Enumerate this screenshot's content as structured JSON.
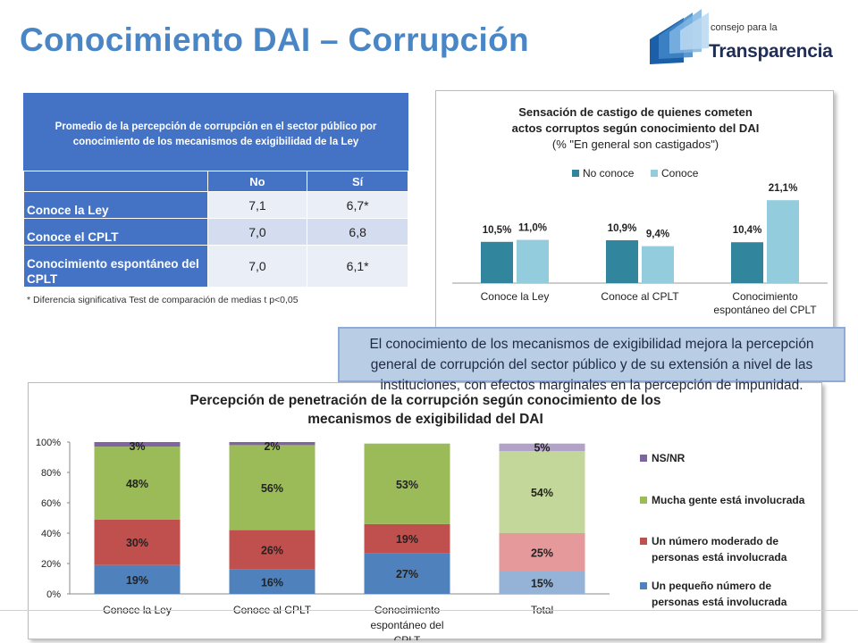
{
  "page": {
    "title": "Conocimiento DAI – Corrupción",
    "logo": {
      "line1": "consejo para la",
      "line2": "Transparencia"
    }
  },
  "table": {
    "title": "Promedio de la percepción de corrupción en el sector público por conocimiento de los mecanismos de exigibilidad de la Ley",
    "columns": [
      "",
      "No",
      "Sí"
    ],
    "rows": [
      {
        "label": "Conoce la Ley",
        "no": "7,1",
        "si": "6,7*"
      },
      {
        "label": "Conoce el CPLT",
        "no": "7,0",
        "si": "6,8"
      },
      {
        "label": "Conocimiento espontáneo del CPLT",
        "no": "7,0",
        "si": "6,1*"
      }
    ],
    "note": "* Diferencia significativa Test de comparación de medias t p<0,05"
  },
  "callout": "El conocimiento de los mecanismos de exigibilidad mejora la percepción general de  corrupción del sector público y de su extensión a nivel de las instituciones, con efectos marginales en la percepción de impunidad.",
  "chart_data": [
    {
      "type": "bar",
      "title": "Sensación de castigo de quienes cometen actos corruptos según conocimiento del DAI",
      "subtitle": "(% \"En general son castigados\")",
      "legend_position": "top",
      "categories": [
        "Conoce la Ley",
        "Conoce al CPLT",
        "Conocimiento espontáneo del CPLT"
      ],
      "series": [
        {
          "name": "No conoce",
          "color": "#31859c",
          "values": [
            10.5,
            10.9,
            10.4
          ],
          "labels": [
            "10,5%",
            "10,9%",
            "10,4%"
          ]
        },
        {
          "name": "Conoce",
          "color": "#93cddd",
          "values": [
            11.0,
            9.4,
            21.1
          ],
          "labels": [
            "11,0%",
            "9,4%",
            "21,1%"
          ]
        }
      ],
      "ylim": [
        0,
        25
      ],
      "grid": false
    },
    {
      "type": "bar",
      "stacked": true,
      "title": "Percepción de penetración de la corrupción según conocimiento de los mecanismos de exigibilidad del DAI",
      "legend_position": "right",
      "categories": [
        "Conoce la Ley",
        "Conoce al CPLT",
        "Conocimiento espontáneo del CPLT",
        "Total"
      ],
      "y_ticks": [
        "0%",
        "20%",
        "40%",
        "60%",
        "80%",
        "100%"
      ],
      "ylim": [
        0,
        100
      ],
      "grid": false,
      "series": [
        {
          "name": "Un pequeño número de personas está involucrada",
          "color": "#4f81bd",
          "total_color": "#95b3d7",
          "values": [
            19,
            16,
            27,
            15
          ]
        },
        {
          "name": "Un número moderado de personas está involucrada",
          "color": "#c0504d",
          "total_color": "#e6999a",
          "values": [
            30,
            26,
            19,
            25
          ]
        },
        {
          "name": "Mucha gente está involucrada",
          "color": "#9bbb59",
          "total_color": "#c4d79b",
          "values": [
            48,
            56,
            53,
            54
          ]
        },
        {
          "name": "NS/NR",
          "color": "#8064a2",
          "total_color": "#b3a2c7",
          "values": [
            3,
            2,
            0,
            5
          ]
        }
      ],
      "labels": [
        [
          "19%",
          "30%",
          "48%",
          "3%"
        ],
        [
          "16%",
          "26%",
          "56%",
          "2%"
        ],
        [
          "27%",
          "19%",
          "53%",
          ""
        ],
        [
          "15%",
          "25%",
          "54%",
          "5%"
        ]
      ]
    }
  ]
}
